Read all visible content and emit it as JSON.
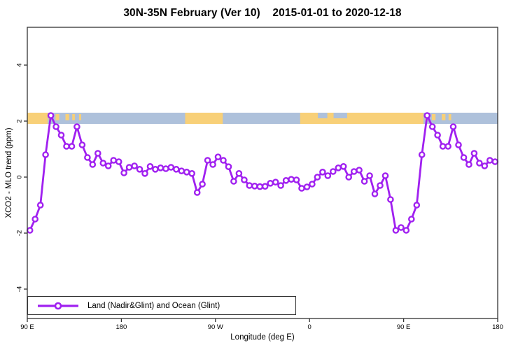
{
  "colors": {
    "line": "#A020F0",
    "marker_fill": "#ffffff",
    "ocean": "#AEC1DB",
    "land": "#F8D078",
    "axis": "#333333",
    "text": "#000000"
  },
  "chart_data": {
    "type": "line",
    "title": "30N-35N February (Ver 10)    2015-01-01 to 2020-12-18",
    "xlabel": "Longitude (deg E)",
    "ylabel": "XCO2 - MLO trend (ppm)",
    "xlim": [
      90,
      540
    ],
    "ylim": [
      -5.05,
      5.35
    ],
    "grid": false,
    "legend_position": "bottom-left",
    "x_ticks": [
      {
        "value": 90,
        "label": "90 E"
      },
      {
        "value": 180,
        "label": "180"
      },
      {
        "value": 270,
        "label": "90 W"
      },
      {
        "value": 360,
        "label": "0"
      },
      {
        "value": 450,
        "label": "90 E"
      },
      {
        "value": 540,
        "label": "180"
      }
    ],
    "y_ticks": [
      {
        "value": -4,
        "label": "-4"
      },
      {
        "value": -2,
        "label": "-2"
      },
      {
        "value": 0,
        "label": "0"
      },
      {
        "value": 2,
        "label": "2"
      },
      {
        "value": 4,
        "label": "4"
      }
    ],
    "series": [
      {
        "name": "Land (Nadir&Glint) and Ocean (Glint)",
        "x": [
          92.5,
          97.5,
          102.5,
          107.5,
          112.5,
          117.5,
          122.5,
          127.5,
          132.5,
          137.5,
          142.5,
          147.5,
          152.5,
          157.5,
          162.5,
          167.5,
          172.5,
          177.5,
          182.5,
          187.5,
          192.5,
          197.5,
          202.5,
          207.5,
          212.5,
          217.5,
          222.5,
          227.5,
          232.5,
          237.5,
          242.5,
          247.5,
          252.5,
          257.5,
          262.5,
          267.5,
          272.5,
          277.5,
          282.5,
          287.5,
          292.5,
          297.5,
          302.5,
          307.5,
          312.5,
          317.5,
          322.5,
          327.5,
          332.5,
          337.5,
          342.5,
          347.5,
          352.5,
          357.5,
          362.5,
          367.5,
          372.5,
          377.5,
          382.5,
          387.5,
          392.5,
          397.5,
          402.5,
          407.5,
          412.5,
          417.5,
          422.5,
          427.5,
          432.5,
          437.5,
          442.5,
          447.5,
          452.5,
          457.5,
          462.5,
          467.5,
          472.5,
          477.5,
          482.5,
          487.5,
          492.5,
          497.5,
          502.5,
          507.5,
          512.5,
          517.5,
          522.5,
          527.5,
          532.5,
          537.5
        ],
        "values": [
          -1.9,
          -1.5,
          -1.0,
          0.8,
          2.2,
          1.8,
          1.5,
          1.1,
          1.1,
          1.8,
          1.15,
          0.7,
          0.45,
          0.85,
          0.5,
          0.4,
          0.6,
          0.55,
          0.15,
          0.35,
          0.4,
          0.28,
          0.13,
          0.38,
          0.28,
          0.33,
          0.3,
          0.35,
          0.28,
          0.22,
          0.18,
          0.13,
          -0.55,
          -0.25,
          0.6,
          0.45,
          0.72,
          0.6,
          0.37,
          -0.15,
          0.13,
          -0.1,
          -0.3,
          -0.32,
          -0.34,
          -0.33,
          -0.22,
          -0.18,
          -0.3,
          -0.12,
          -0.08,
          -0.1,
          -0.4,
          -0.35,
          -0.25,
          0.0,
          0.18,
          0.05,
          0.2,
          0.33,
          0.38,
          0.0,
          0.2,
          0.25,
          -0.15,
          0.05,
          -0.6,
          -0.3,
          0.05,
          -0.8,
          -1.9,
          -1.8,
          -1.9,
          -1.5,
          -1.0,
          0.8,
          2.2,
          1.8,
          1.5,
          1.1,
          1.1,
          1.8,
          1.15,
          0.7,
          0.45,
          0.85,
          0.5,
          0.4,
          0.6,
          0.55
        ]
      }
    ],
    "map_strip": {
      "value_top": 2.3,
      "value_bottom": 1.9,
      "land_segments": [
        {
          "from": 90,
          "to": 109.5
        },
        {
          "from": 241,
          "to": 277
        },
        {
          "from": 351,
          "to": 469
        }
      ],
      "island_patches": [
        {
          "from": 110.5,
          "to": 112.8
        },
        {
          "from": 117,
          "to": 120.5
        },
        {
          "from": 126.5,
          "to": 130
        },
        {
          "from": 133,
          "to": 135.5
        },
        {
          "from": 139.5,
          "to": 141.5
        },
        {
          "from": 470.5,
          "to": 472.8
        },
        {
          "from": 477,
          "to": 480.5
        },
        {
          "from": 486.5,
          "to": 490
        },
        {
          "from": 493,
          "to": 495.5
        }
      ],
      "sea_notches": [
        {
          "from": 368,
          "to": 377
        },
        {
          "from": 383,
          "to": 396
        }
      ]
    }
  }
}
